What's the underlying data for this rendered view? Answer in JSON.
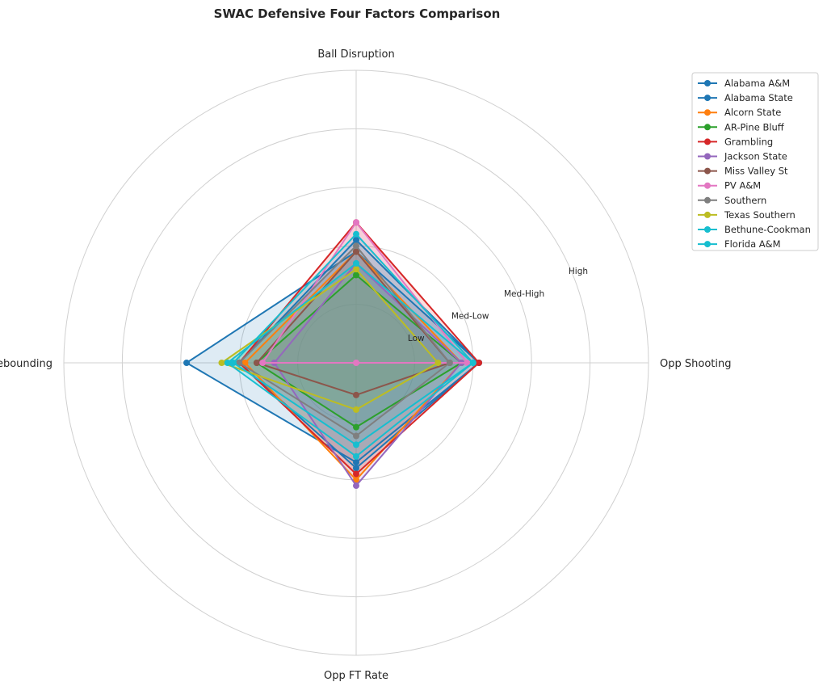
{
  "chart_data": {
    "type": "radar",
    "title": "SWAC Defensive Four Factors Comparison",
    "axes": [
      "Ball Disruption",
      "Opp Shooting",
      "Opp FT Rate",
      "Def Rebounding"
    ],
    "ring_labels": [
      "Low",
      "Med-Low",
      "Med-High",
      "High"
    ],
    "range": [
      0,
      5
    ],
    "grid": true,
    "legend_position": "upper-right-outside",
    "series": [
      {
        "name": "Alabama A&M",
        "color": "#1f77b4",
        "values": [
          1.9,
          2.1,
          1.7,
          2.9
        ]
      },
      {
        "name": "Alabama State",
        "color": "#1f77b4",
        "values": [
          2.1,
          2.1,
          1.8,
          2.0
        ]
      },
      {
        "name": "Alcorn State",
        "color": "#ff7f0e",
        "values": [
          1.9,
          1.8,
          2.0,
          1.9
        ]
      },
      {
        "name": "AR-Pine Bluff",
        "color": "#2ca02c",
        "values": [
          1.5,
          1.8,
          1.1,
          1.7
        ]
      },
      {
        "name": "Grambling",
        "color": "#d62728",
        "values": [
          2.4,
          2.1,
          1.9,
          2.0
        ]
      },
      {
        "name": "Jackson State",
        "color": "#9467bd",
        "values": [
          1.7,
          1.8,
          2.1,
          1.4
        ]
      },
      {
        "name": "Miss Valley St",
        "color": "#8c564b",
        "values": [
          1.9,
          1.6,
          0.55,
          1.7
        ]
      },
      {
        "name": "PV A&M",
        "color": "#e377c2",
        "values": [
          2.4,
          1.9,
          0.0,
          1.6
        ]
      },
      {
        "name": "Southern",
        "color": "#7f7f7f",
        "values": [
          2.0,
          1.6,
          1.25,
          2.0
        ]
      },
      {
        "name": "Texas Southern",
        "color": "#bcbd22",
        "values": [
          1.6,
          1.4,
          0.8,
          2.3
        ]
      },
      {
        "name": "Bethune-Cookman",
        "color": "#17becf",
        "values": [
          2.2,
          2.0,
          1.4,
          2.1
        ]
      },
      {
        "name": "Florida A&M",
        "color": "#17becf",
        "values": [
          1.7,
          2.0,
          1.6,
          2.2
        ]
      }
    ]
  }
}
